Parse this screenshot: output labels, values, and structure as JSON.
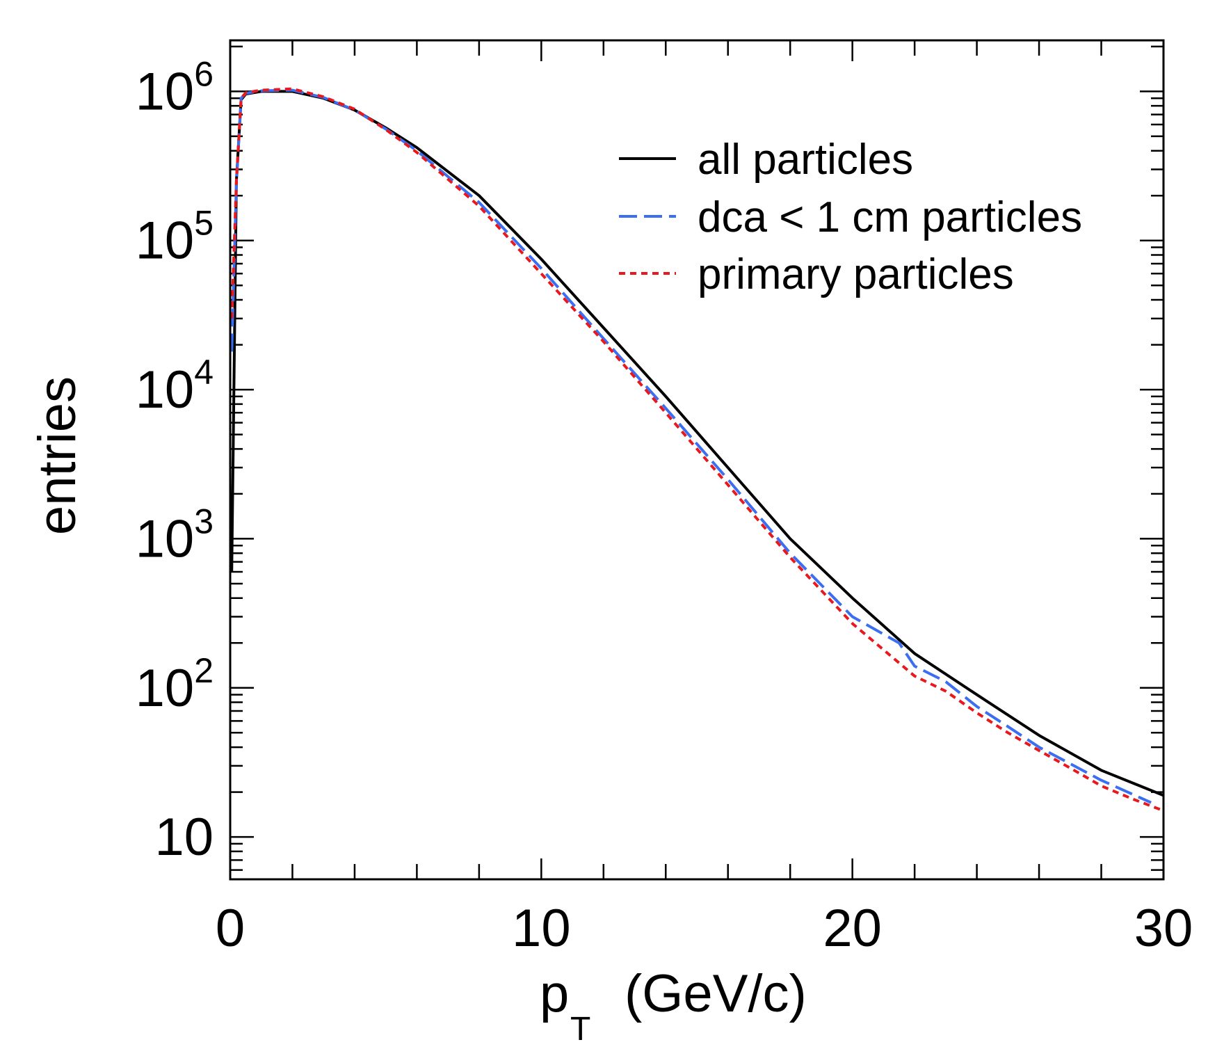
{
  "chart_data": {
    "type": "line",
    "title": "",
    "xlabel": "p",
    "xlabel_subscript": "T",
    "xlabel_unit": "(GeV/c)",
    "ylabel": "entries",
    "xlim": [
      0,
      30
    ],
    "ylim": [
      5.2,
      2200000
    ],
    "yscale": "log",
    "grid": false,
    "legend_position": "top-right",
    "x_ticks": [
      {
        "value": 0,
        "label": "0"
      },
      {
        "value": 10,
        "label": "10"
      },
      {
        "value": 20,
        "label": "20"
      },
      {
        "value": 30,
        "label": "30"
      }
    ],
    "y_ticks": [
      {
        "value": 10,
        "base": "10",
        "exponent": ""
      },
      {
        "value": 100,
        "base": "10",
        "exponent": "2"
      },
      {
        "value": 1000,
        "base": "10",
        "exponent": "3"
      },
      {
        "value": 10000,
        "base": "10",
        "exponent": "4"
      },
      {
        "value": 100000,
        "base": "10",
        "exponent": "5"
      },
      {
        "value": 1000000,
        "base": "10",
        "exponent": "6"
      }
    ],
    "series": [
      {
        "name": "all particles",
        "color": "#000000",
        "style": "solid",
        "x": [
          0.05,
          0.2,
          0.35,
          0.5,
          1.0,
          2.0,
          3.0,
          4.0,
          5.0,
          6.0,
          8.0,
          10.0,
          12.0,
          14.0,
          16.0,
          18.0,
          20.0,
          22.0,
          24.0,
          26.0,
          28.0,
          30.0
        ],
        "y": [
          600,
          250000,
          880000,
          960000,
          1000000,
          1000000,
          900000,
          750000,
          570000,
          420000,
          200000,
          75000,
          26000,
          9000,
          3000,
          1000,
          400,
          170,
          90,
          48,
          28,
          19
        ]
      },
      {
        "name": "dca < 1 cm particles",
        "color": "#3b6ef0",
        "style": "dashed",
        "x": [
          0.05,
          0.2,
          0.35,
          0.5,
          1.0,
          2.0,
          3.0,
          4.0,
          5.0,
          6.0,
          8.0,
          10.0,
          12.0,
          14.0,
          16.0,
          18.0,
          20.0,
          21.5,
          22.0,
          23.0,
          24.0,
          25.0,
          26.0,
          27.0,
          28.0,
          29.6
        ],
        "y": [
          18000,
          240000,
          900000,
          970000,
          1010000,
          1020000,
          910000,
          750000,
          560000,
          400000,
          180000,
          65000,
          22000,
          7500,
          2500,
          800,
          300,
          200,
          140,
          110,
          75,
          55,
          40,
          31,
          24,
          17
        ]
      },
      {
        "name": "primary particles",
        "color": "#e8191e",
        "style": "dotted",
        "x": [
          0.05,
          0.2,
          0.35,
          0.5,
          1.0,
          2.0,
          3.0,
          4.0,
          5.0,
          6.0,
          8.0,
          10.0,
          12.0,
          14.0,
          16.0,
          18.0,
          20.0,
          22.0,
          23.0,
          24.0,
          25.0,
          26.0,
          27.0,
          28.0,
          29.0,
          30.0
        ],
        "y": [
          30000,
          250000,
          900000,
          980000,
          1020000,
          1040000,
          920000,
          760000,
          555000,
          390000,
          170000,
          60000,
          21000,
          7000,
          2300,
          750,
          270,
          120,
          95,
          68,
          50,
          38,
          29,
          22,
          18,
          15
        ]
      }
    ]
  }
}
